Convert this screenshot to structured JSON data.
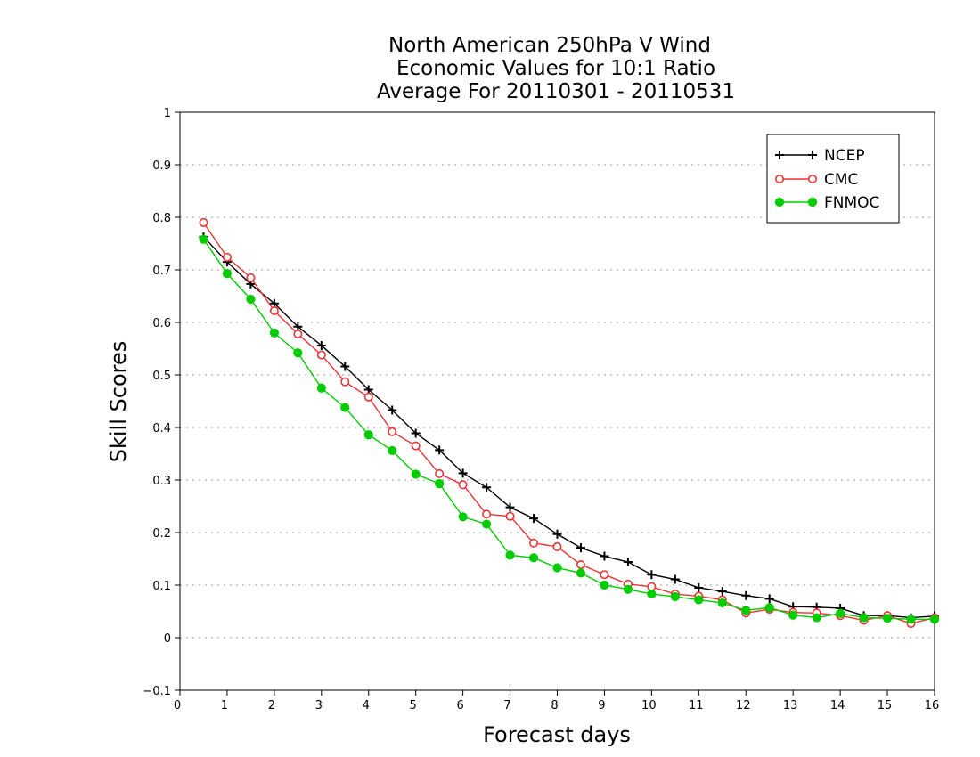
{
  "chart_data": {
    "type": "line",
    "title": [
      "North American 250hPa V Wind",
      "Economic Values for 10:1 Ratio",
      "Average For 20110301 - 20110531"
    ],
    "xlabel": "Forecast days",
    "ylabel": "Skill Scores",
    "xlim": [
      0,
      16
    ],
    "ylim": [
      -0.1,
      1
    ],
    "xticks": [
      "0",
      "1",
      "2",
      "3",
      "4",
      "5",
      "6",
      "7",
      "8",
      "9",
      "10",
      "11",
      "12",
      "13",
      "14",
      "15",
      "16"
    ],
    "yticks": [
      "−0.1",
      "0",
      "0.1",
      "0.2",
      "0.3",
      "0.4",
      "0.5",
      "0.6",
      "0.7",
      "0.8",
      "0.9",
      "1"
    ],
    "grid": "horizontal dotted",
    "legend_position": "top-right",
    "x": [
      0.5,
      1,
      1.5,
      2,
      2.5,
      3,
      3.5,
      4,
      4.5,
      5,
      5.5,
      6,
      6.5,
      7,
      7.5,
      8,
      8.5,
      9,
      9.5,
      10,
      10.5,
      11,
      11.5,
      12,
      12.5,
      13,
      13.5,
      14,
      14.5,
      15,
      15.5,
      16
    ],
    "series": [
      {
        "name": "NCEP",
        "color": "#000000",
        "marker": "plus",
        "values": [
          0.763,
          0.715,
          0.673,
          0.636,
          0.592,
          0.556,
          0.516,
          0.472,
          0.433,
          0.389,
          0.357,
          0.313,
          0.286,
          0.248,
          0.227,
          0.197,
          0.171,
          0.155,
          0.144,
          0.12,
          0.111,
          0.095,
          0.088,
          0.08,
          0.074,
          0.059,
          0.058,
          0.056,
          0.042,
          0.042,
          0.038,
          0.041
        ]
      },
      {
        "name": "CMC",
        "color": "#ee3333",
        "marker": "open-circle",
        "values": [
          0.79,
          0.724,
          0.685,
          0.622,
          0.578,
          0.538,
          0.487,
          0.458,
          0.392,
          0.365,
          0.312,
          0.291,
          0.235,
          0.231,
          0.18,
          0.173,
          0.139,
          0.12,
          0.102,
          0.097,
          0.083,
          0.079,
          0.072,
          0.047,
          0.054,
          0.048,
          0.047,
          0.042,
          0.033,
          0.042,
          0.027,
          0.038
        ]
      },
      {
        "name": "FNMOC",
        "color": "#00cc00",
        "marker": "filled-circle",
        "values": [
          0.758,
          0.693,
          0.644,
          0.58,
          0.542,
          0.475,
          0.438,
          0.386,
          0.356,
          0.311,
          0.293,
          0.23,
          0.216,
          0.157,
          0.152,
          0.133,
          0.123,
          0.1,
          0.092,
          0.083,
          0.078,
          0.072,
          0.066,
          0.052,
          0.057,
          0.043,
          0.038,
          0.046,
          0.038,
          0.037,
          0.035,
          0.035
        ]
      }
    ]
  }
}
